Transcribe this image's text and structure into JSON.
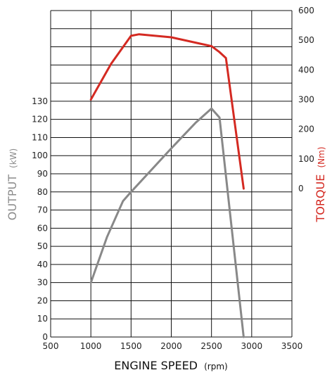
{
  "chart_data": {
    "type": "line",
    "x_label_main": "ENGINE SPEED",
    "x_label_unit": "(rpm)",
    "left_label_main": "OUTPUT",
    "left_label_unit": "(kW)",
    "right_label_main": "TORQUE",
    "right_label_unit": "(Nm)",
    "x_ticks": [
      "500",
      "1000",
      "1500",
      "2000",
      "2500",
      "3000",
      "3500"
    ],
    "left_ticks": [
      "0",
      "10",
      "20",
      "30",
      "40",
      "50",
      "60",
      "70",
      "80",
      "90",
      "100",
      "110",
      "120",
      "130"
    ],
    "right_ticks": [
      "0",
      "100",
      "200",
      "300",
      "400",
      "500",
      "600"
    ],
    "xlim": [
      500,
      3500
    ],
    "output_ylim": [
      0,
      180
    ],
    "torque_ylim": [
      -500,
      600
    ],
    "grid": true,
    "series": [
      {
        "axis": "left",
        "color": "#888888",
        "x": [
          1000,
          1200,
          1400,
          1500,
          2000,
          2300,
          2500,
          2600,
          2900
        ],
        "y": [
          30,
          55,
          75,
          80,
          104,
          118,
          126,
          121,
          0
        ]
      },
      {
        "axis": "right",
        "color": "#d42a22",
        "x": [
          1000,
          1250,
          1500,
          1600,
          2000,
          2500,
          2600,
          2680,
          2900
        ],
        "y": [
          300,
          420,
          515,
          520,
          510,
          480,
          460,
          440,
          0
        ]
      }
    ]
  }
}
